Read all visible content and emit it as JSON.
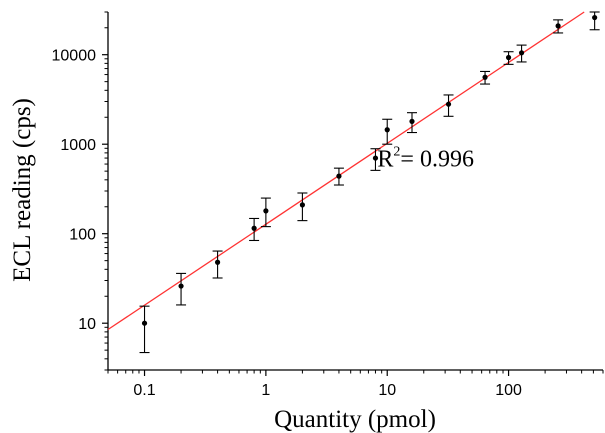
{
  "chart_data": {
    "type": "scatter",
    "title": "",
    "xlabel": "Quantity (pmol)",
    "ylabel": "ECL reading (cps)",
    "xscale": "log",
    "yscale": "log",
    "xlim": [
      0.05,
      600
    ],
    "ylim": [
      3,
      30000
    ],
    "grid": false,
    "x_ticks": [
      {
        "value": 0.1,
        "label": "0.1"
      },
      {
        "value": 1,
        "label": "1"
      },
      {
        "value": 10,
        "label": "10"
      },
      {
        "value": 100,
        "label": "100"
      }
    ],
    "y_ticks": [
      {
        "value": 10,
        "label": "10"
      },
      {
        "value": 100,
        "label": "100"
      },
      {
        "value": 1000,
        "label": "1000"
      },
      {
        "value": 10000,
        "label": "10000"
      }
    ],
    "series": [
      {
        "marker_color": "#000000",
        "points": [
          {
            "x": 0.1,
            "y": 10,
            "err_low": 4.7,
            "err_high": 15.5
          },
          {
            "x": 0.2,
            "y": 26,
            "err_low": 16,
            "err_high": 36
          },
          {
            "x": 0.4,
            "y": 48,
            "err_low": 32,
            "err_high": 64
          },
          {
            "x": 0.8,
            "y": 115,
            "err_low": 84,
            "err_high": 148
          },
          {
            "x": 1,
            "y": 180,
            "err_low": 120,
            "err_high": 250
          },
          {
            "x": 2,
            "y": 210,
            "err_low": 140,
            "err_high": 285
          },
          {
            "x": 4,
            "y": 440,
            "err_low": 350,
            "err_high": 540
          },
          {
            "x": 8,
            "y": 700,
            "err_low": 510,
            "err_high": 890
          },
          {
            "x": 10,
            "y": 1450,
            "err_low": 1000,
            "err_high": 1900
          },
          {
            "x": 16,
            "y": 1800,
            "err_low": 1350,
            "err_high": 2250
          },
          {
            "x": 32,
            "y": 2800,
            "err_low": 2050,
            "err_high": 3550
          },
          {
            "x": 64,
            "y": 5600,
            "err_low": 4700,
            "err_high": 6500
          },
          {
            "x": 100,
            "y": 9300,
            "err_low": 7800,
            "err_high": 10800
          },
          {
            "x": 128,
            "y": 10500,
            "err_low": 8300,
            "err_high": 12800
          },
          {
            "x": 256,
            "y": 21000,
            "err_low": 17500,
            "err_high": 24500
          },
          {
            "x": 512,
            "y": 26000,
            "err_low": 19000,
            "err_high": 30000
          }
        ]
      }
    ],
    "fit_line": {
      "color": "#ff3333",
      "x_start": 0.05,
      "y_start": 8.5,
      "x_end": 420,
      "y_end": 30000
    },
    "annotation": {
      "base": "R",
      "superscript": "2",
      "text": "= 0.996",
      "x": 8.3,
      "y": 560
    }
  }
}
